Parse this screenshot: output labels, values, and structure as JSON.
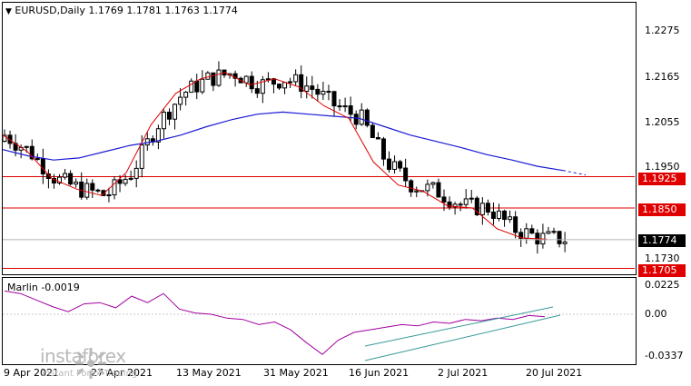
{
  "chart": {
    "symbol_line": "EURUSD,Daily  1.1769 1.1781 1.1763 1.1774",
    "price_axis": [
      "1.2275",
      "1.2165",
      "1.2055",
      "1.1950",
      "1.1730"
    ],
    "levels": [
      {
        "label": "1.1925",
        "color": "#e00000"
      },
      {
        "label": "1.1850",
        "color": "#e00000"
      },
      {
        "label": "1.1705",
        "color": "#e00000"
      }
    ],
    "current_price": "1.1774",
    "dates": [
      "9 Apr 2021",
      "27 Apr 2021",
      "13 May 2021",
      "31 May 2021",
      "16 Jun 2021",
      "2 Jul 2021",
      "20 Jul 2021"
    ],
    "colors": {
      "red_ma": "#e00000",
      "blue_ma": "#1a1ad6",
      "oscillator": "#a000a0",
      "channel": "#3a9a9a"
    }
  },
  "oscillator": {
    "title": "Marlin -0.0019",
    "axis": [
      "0.0225",
      "0.00",
      "-0.0337"
    ]
  },
  "watermark": {
    "brand": "instaforex",
    "tagline": "Instant Forex Trading"
  },
  "chart_data": {
    "type": "line",
    "title": "EURUSD,Daily",
    "ohlc_header": {
      "open": 1.1769,
      "high": 1.1781,
      "low": 1.1763,
      "close": 1.1774
    },
    "ylim": [
      1.169,
      1.233
    ],
    "horizontal_levels": [
      1.1925,
      1.185,
      1.1705
    ],
    "x_ticks": [
      "9 Apr 2021",
      "27 Apr 2021",
      "13 May 2021",
      "31 May 2021",
      "16 Jun 2021",
      "2 Jul 2021",
      "20 Jul 2021"
    ],
    "series": [
      {
        "values": [
          1.2025,
          1.1985,
          1.192,
          1.1895,
          1.188,
          1.1935,
          1.205,
          1.2125,
          1.216,
          1.2175,
          1.2145,
          1.216,
          1.214,
          1.2095,
          1.2065,
          1.196,
          1.1905,
          1.189,
          1.1855,
          1.185,
          1.18,
          1.1778,
          1.1775
        ]
      },
      {
        "values": [
          1.199,
          1.1975,
          1.1965,
          1.197,
          1.1985,
          1.2,
          1.201,
          1.2025,
          1.2045,
          1.2062,
          1.2075,
          1.208,
          1.2075,
          1.207,
          1.2065,
          1.2045,
          1.2025,
          1.201,
          1.1995,
          1.1978,
          1.1965,
          1.195,
          1.194
        ]
      }
    ],
    "oscillator": {
      "name": "Marlin",
      "last": -0.0019,
      "ylim": [
        -0.0337,
        0.0225
      ],
      "values": [
        0.018,
        0.016,
        0.011,
        0.006,
        0.002,
        0.008,
        0.009,
        0.005,
        0.014,
        0.009,
        0.016,
        0.004,
        0.001,
        0.0,
        -0.003,
        -0.004,
        -0.008,
        -0.006,
        -0.012,
        -0.022,
        -0.031,
        -0.02,
        -0.014,
        -0.012,
        -0.01,
        -0.008,
        -0.009,
        -0.006,
        -0.007,
        -0.004,
        -0.005,
        -0.003,
        -0.004,
        -0.001,
        -0.002
      ]
    }
  }
}
